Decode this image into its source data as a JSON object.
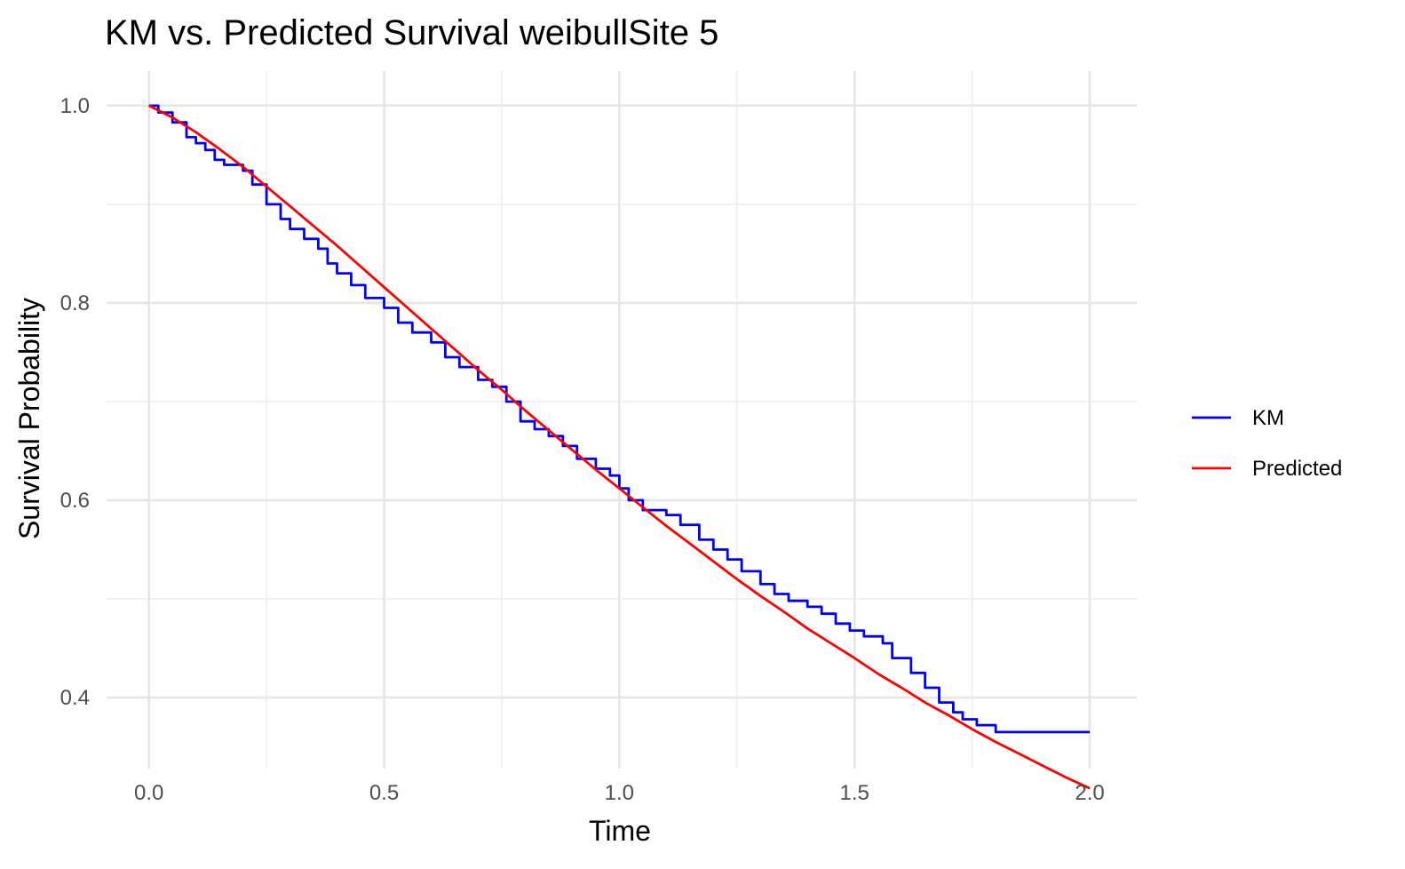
{
  "chart_data": {
    "type": "line",
    "title": "KM vs. Predicted Survival weibullSite 5",
    "xlabel": "Time",
    "ylabel": "Survival Probability",
    "xlim": [
      -0.09,
      2.1
    ],
    "ylim": [
      0.328,
      1.035
    ],
    "x_ticks": [
      0.0,
      0.5,
      1.0,
      1.5,
      2.0
    ],
    "x_tick_labels": [
      "0.0",
      "0.5",
      "1.0",
      "1.5",
      "2.0"
    ],
    "y_ticks": [
      0.4,
      0.6,
      0.8,
      1.0
    ],
    "y_tick_labels": [
      "0.4",
      "0.6",
      "0.8",
      "1.0"
    ],
    "grid": true,
    "legend_position": "right",
    "series": [
      {
        "name": "KM",
        "color": "#0000FF",
        "step": true,
        "x": [
          0.0,
          0.02,
          0.05,
          0.08,
          0.1,
          0.12,
          0.14,
          0.16,
          0.2,
          0.22,
          0.25,
          0.28,
          0.3,
          0.33,
          0.36,
          0.38,
          0.4,
          0.43,
          0.46,
          0.5,
          0.53,
          0.56,
          0.6,
          0.63,
          0.66,
          0.7,
          0.73,
          0.76,
          0.79,
          0.82,
          0.85,
          0.88,
          0.91,
          0.95,
          0.98,
          1.0,
          1.02,
          1.05,
          1.1,
          1.13,
          1.17,
          1.2,
          1.23,
          1.26,
          1.3,
          1.33,
          1.36,
          1.4,
          1.43,
          1.46,
          1.49,
          1.52,
          1.56,
          1.58,
          1.62,
          1.65,
          1.68,
          1.71,
          1.73,
          1.76,
          1.8,
          2.0
        ],
        "y": [
          1.0,
          0.993,
          0.983,
          0.968,
          0.962,
          0.955,
          0.945,
          0.94,
          0.934,
          0.92,
          0.9,
          0.885,
          0.875,
          0.865,
          0.855,
          0.84,
          0.83,
          0.818,
          0.805,
          0.795,
          0.78,
          0.77,
          0.76,
          0.745,
          0.735,
          0.722,
          0.715,
          0.7,
          0.68,
          0.672,
          0.665,
          0.655,
          0.642,
          0.632,
          0.625,
          0.612,
          0.6,
          0.59,
          0.585,
          0.575,
          0.56,
          0.55,
          0.54,
          0.528,
          0.515,
          0.505,
          0.498,
          0.492,
          0.485,
          0.475,
          0.468,
          0.462,
          0.455,
          0.44,
          0.425,
          0.41,
          0.395,
          0.385,
          0.378,
          0.372,
          0.365,
          0.365
        ]
      },
      {
        "name": "Predicted",
        "color": "#FF0000",
        "step": false,
        "x": [
          0.0,
          0.05,
          0.1,
          0.15,
          0.2,
          0.25,
          0.3,
          0.35,
          0.4,
          0.45,
          0.5,
          0.55,
          0.6,
          0.65,
          0.7,
          0.75,
          0.8,
          0.85,
          0.9,
          0.95,
          1.0,
          1.05,
          1.1,
          1.15,
          1.2,
          1.25,
          1.3,
          1.35,
          1.4,
          1.45,
          1.5,
          1.55,
          1.6,
          1.65,
          1.7,
          1.75,
          1.8,
          1.85,
          1.9,
          1.95,
          2.0
        ],
        "y": [
          1.0,
          0.988,
          0.973,
          0.956,
          0.938,
          0.918,
          0.898,
          0.878,
          0.858,
          0.837,
          0.816,
          0.795,
          0.774,
          0.753,
          0.732,
          0.712,
          0.691,
          0.671,
          0.651,
          0.631,
          0.612,
          0.593,
          0.574,
          0.556,
          0.538,
          0.52,
          0.503,
          0.487,
          0.47,
          0.455,
          0.44,
          0.424,
          0.41,
          0.395,
          0.382,
          0.368,
          0.355,
          0.343,
          0.331,
          0.319,
          0.308
        ]
      }
    ]
  }
}
